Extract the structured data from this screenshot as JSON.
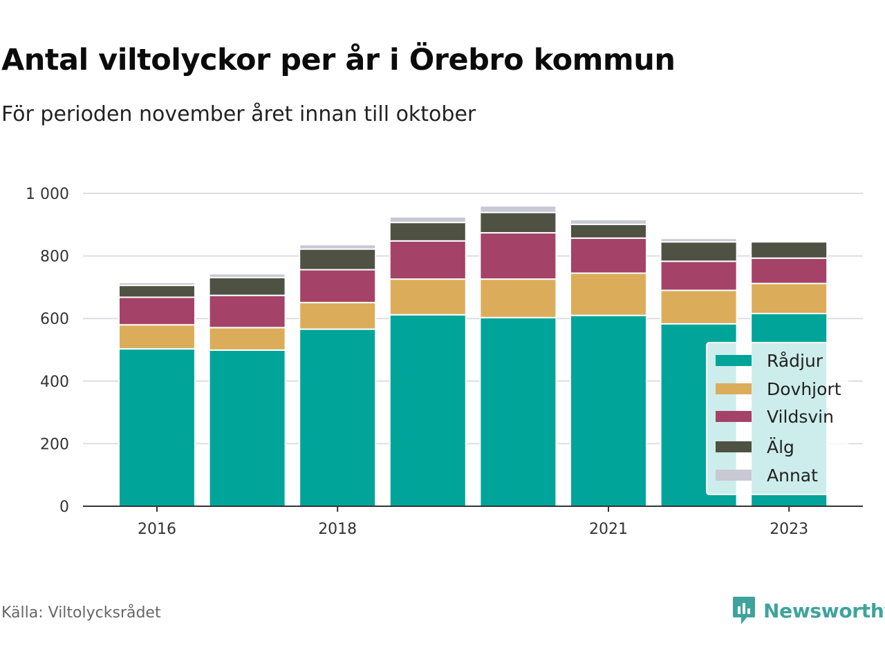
{
  "title": "Antal viltolyckor per år i Örebro kommun",
  "subtitle": "För perioden november året innan till oktober",
  "source": "Källa: Viltolycksrådet",
  "brand": {
    "name": "Newsworthy",
    "icon": "newsworthy-logo-icon",
    "color": "#3fa39c"
  },
  "chart_data": {
    "type": "bar",
    "stacked": true,
    "categories": [
      "2016",
      "2017",
      "2018",
      "2019",
      "2020",
      "2021",
      "2022",
      "2023"
    ],
    "x_tick_labels": [
      "2016",
      "",
      "2018",
      "",
      "",
      "2021",
      "",
      "2023"
    ],
    "y_ticks": [
      "0",
      "200",
      "400",
      "600",
      "800",
      "1 000"
    ],
    "ylim": [
      0,
      1000
    ],
    "grid": true,
    "legend_position": "right-inside",
    "series": [
      {
        "name": "Rådjur",
        "color": "#00a499",
        "values": [
          503,
          499,
          566,
          612,
          603,
          610,
          583,
          616
        ]
      },
      {
        "name": "Dovhjort",
        "color": "#dbad5b",
        "values": [
          77,
          72,
          85,
          114,
          123,
          135,
          107,
          96
        ]
      },
      {
        "name": "Vildsvin",
        "color": "#a44268",
        "values": [
          88,
          103,
          105,
          122,
          148,
          112,
          93,
          81
        ]
      },
      {
        "name": "Älg",
        "color": "#4f5143",
        "values": [
          38,
          57,
          66,
          59,
          65,
          44,
          62,
          52
        ]
      },
      {
        "name": "Annat",
        "color": "#c9c8d5",
        "values": [
          9,
          12,
          14,
          18,
          21,
          15,
          11,
          0
        ]
      }
    ]
  }
}
